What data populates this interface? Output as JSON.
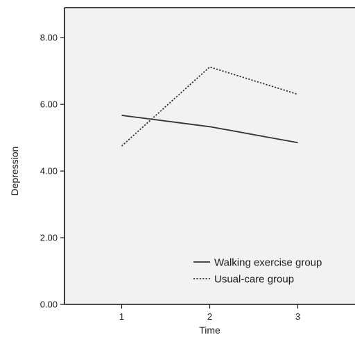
{
  "chart_data": {
    "type": "line",
    "title": "",
    "xlabel": "Time",
    "ylabel": "Depression",
    "x": [
      1,
      2,
      3
    ],
    "x_tick_labels": [
      "1",
      "2",
      "3"
    ],
    "y_tick_labels": [
      "0.00",
      "2.00",
      "4.00",
      "6.00",
      "8.00"
    ],
    "y_ticks": [
      0,
      2,
      4,
      6,
      8
    ],
    "ylim": [
      0,
      8.9
    ],
    "xlim": [
      0.35,
      3.65
    ],
    "grid": false,
    "legend_position": "bottom-right",
    "background_color": "#f2f2f2",
    "series": [
      {
        "name": "Walking exercise group",
        "values": [
          5.67,
          5.33,
          4.85
        ],
        "line_style": "solid",
        "color": "#333333"
      },
      {
        "name": "Usual-care group",
        "values": [
          4.75,
          7.12,
          6.3
        ],
        "line_style": "dotted",
        "color": "#333333"
      }
    ]
  }
}
